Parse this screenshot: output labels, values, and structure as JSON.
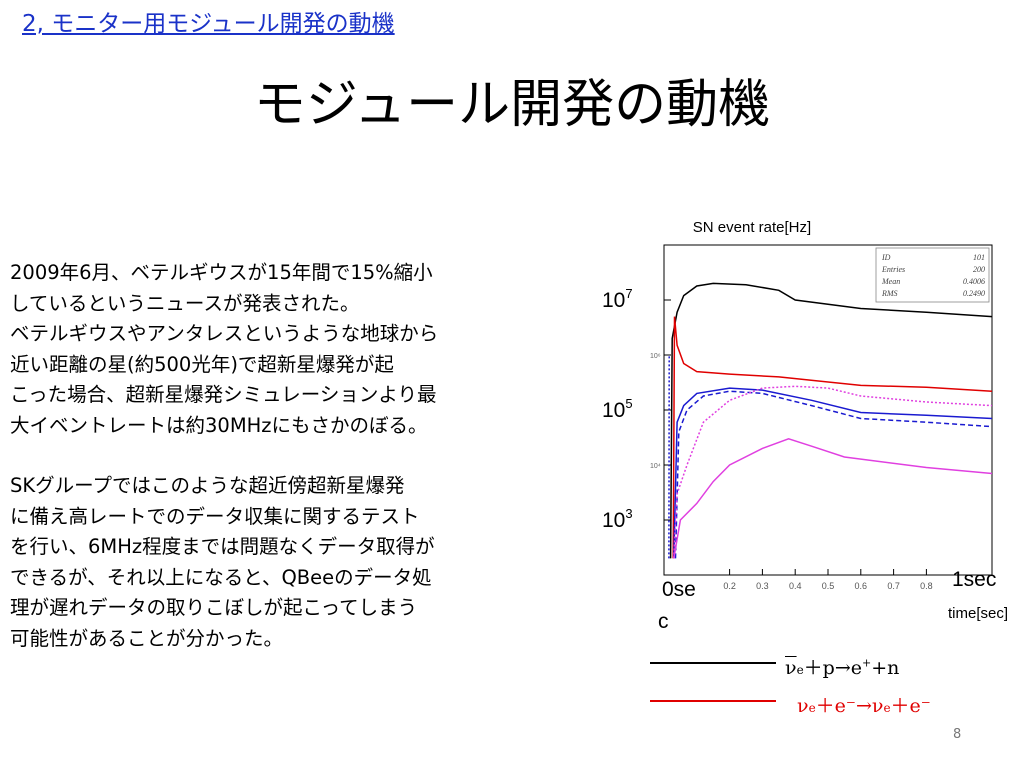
{
  "slide": {
    "section_link": "2, モニター用モジュール開発の動機",
    "title": "モジュール開発の動機",
    "page_number": "8"
  },
  "body": {
    "paragraph1": [
      "2009年6月、ベテルギウスが15年間で15%縮小",
      "しているというニュースが発表された。",
      "ベテルギウスやアンタレスというような地球から",
      "近い距離の星(約500光年)で超新星爆発が起",
      "こった場合、超新星爆発シミュレーションより最",
      "大イベントレートは約30MHzにもさかのぼる。"
    ],
    "paragraph2": [
      "SKグループではこのような超近傍超新星爆発",
      "に備え高レートでのデータ収集に関するテスト",
      "を行い、6MHz程度までは問題なくデータ取得が",
      "できるが、それ以上になると、QBeeのデータ処",
      "理が遅れデータの取りこぼしが起こってしまう",
      "可能性があることが分かった。"
    ]
  },
  "chart_data": {
    "type": "line",
    "title": "SN event rate[Hz]",
    "xlabel": "time[sec]",
    "y_scale": "log",
    "ylim": [
      100,
      100000000
    ],
    "xlim": [
      0,
      1
    ],
    "y_tick_labels": [
      {
        "base": "10",
        "exp": "7",
        "value": 10000000
      },
      {
        "base": "10",
        "exp": "5",
        "value": 100000
      },
      {
        "base": "10",
        "exp": "3",
        "value": 1000
      }
    ],
    "inner_y_ticks": [
      {
        "label": "10⁶",
        "value": 1000000
      },
      {
        "label": "10⁴",
        "value": 10000
      }
    ],
    "x_tick_labels": [
      "0.2",
      "0.3",
      "0.4",
      "0.5",
      "0.6",
      "0.7",
      "0.8"
    ],
    "x_ticks": [
      0.2,
      0.3,
      0.4,
      0.5,
      0.6,
      0.7,
      0.8
    ],
    "x_start_label_line1": "0se",
    "x_start_label_line2": "c",
    "x_end_label": "1sec",
    "stats_box": {
      "rows": [
        {
          "key": "ID",
          "value": "101"
        },
        {
          "key": "Entries",
          "value": "200"
        },
        {
          "key": "Mean",
          "value": "0.4006"
        },
        {
          "key": "RMS",
          "value": "0.2490"
        }
      ]
    },
    "series": [
      {
        "color": "#000000",
        "style": "solid",
        "points": [
          [
            0.02,
            200
          ],
          [
            0.025,
            2000000
          ],
          [
            0.04,
            6000000
          ],
          [
            0.06,
            12000000
          ],
          [
            0.1,
            18000000
          ],
          [
            0.15,
            20000000
          ],
          [
            0.25,
            19000000
          ],
          [
            0.35,
            15000000
          ],
          [
            0.4,
            10000000
          ],
          [
            0.6,
            7000000
          ],
          [
            0.8,
            6000000
          ],
          [
            1.0,
            5000000
          ]
        ]
      },
      {
        "color": "#e00000",
        "style": "solid",
        "points": [
          [
            0.028,
            200
          ],
          [
            0.032,
            5000000
          ],
          [
            0.04,
            1500000
          ],
          [
            0.06,
            700000
          ],
          [
            0.1,
            500000
          ],
          [
            0.2,
            450000
          ],
          [
            0.35,
            400000
          ],
          [
            0.6,
            280000
          ],
          [
            0.8,
            260000
          ],
          [
            1.0,
            220000
          ]
        ]
      },
      {
        "color": "#1a1ad0",
        "style": "solid",
        "points": [
          [
            0.03,
            200
          ],
          [
            0.04,
            60000
          ],
          [
            0.06,
            120000
          ],
          [
            0.1,
            200000
          ],
          [
            0.2,
            250000
          ],
          [
            0.3,
            230000
          ],
          [
            0.45,
            150000
          ],
          [
            0.6,
            90000
          ],
          [
            0.8,
            80000
          ],
          [
            1.0,
            70000
          ]
        ]
      },
      {
        "color": "#1a1ad0",
        "style": "dashed",
        "points": [
          [
            0.035,
            200
          ],
          [
            0.045,
            40000
          ],
          [
            0.07,
            100000
          ],
          [
            0.12,
            180000
          ],
          [
            0.2,
            220000
          ],
          [
            0.3,
            200000
          ],
          [
            0.45,
            120000
          ],
          [
            0.6,
            70000
          ],
          [
            0.8,
            60000
          ],
          [
            1.0,
            50000
          ]
        ]
      },
      {
        "color": "#e040e0",
        "style": "dotted",
        "points": [
          [
            0.03,
            200
          ],
          [
            0.04,
            3000
          ],
          [
            0.07,
            10000
          ],
          [
            0.12,
            60000
          ],
          [
            0.2,
            150000
          ],
          [
            0.3,
            250000
          ],
          [
            0.4,
            270000
          ],
          [
            0.5,
            250000
          ],
          [
            0.6,
            180000
          ],
          [
            0.8,
            140000
          ],
          [
            1.0,
            120000
          ]
        ]
      },
      {
        "color": "#e040e0",
        "style": "solid",
        "points": [
          [
            0.03,
            200
          ],
          [
            0.05,
            1000
          ],
          [
            0.1,
            2000
          ],
          [
            0.15,
            5000
          ],
          [
            0.2,
            10000
          ],
          [
            0.3,
            20000
          ],
          [
            0.38,
            30000
          ],
          [
            0.45,
            22000
          ],
          [
            0.55,
            14000
          ],
          [
            0.8,
            9000
          ],
          [
            1.0,
            7000
          ]
        ]
      },
      {
        "color": "#1a1ad0",
        "style": "dotted",
        "points": [
          [
            0.015,
            200
          ],
          [
            0.016,
            1000000
          ]
        ]
      }
    ]
  },
  "legend": {
    "items": [
      {
        "color": "#000000",
        "nu": "ν",
        "sub": "e",
        "rest1": "＋p→e",
        "sup": "+",
        "rest2": "+n",
        "antineutrino": true
      },
      {
        "color": "#e00000",
        "nu": "ν",
        "sub": "e",
        "rest1": "＋e⁻→",
        "nu2": "ν",
        "sub2": "e",
        "rest2": "＋e⁻",
        "antineutrino": false
      }
    ]
  }
}
